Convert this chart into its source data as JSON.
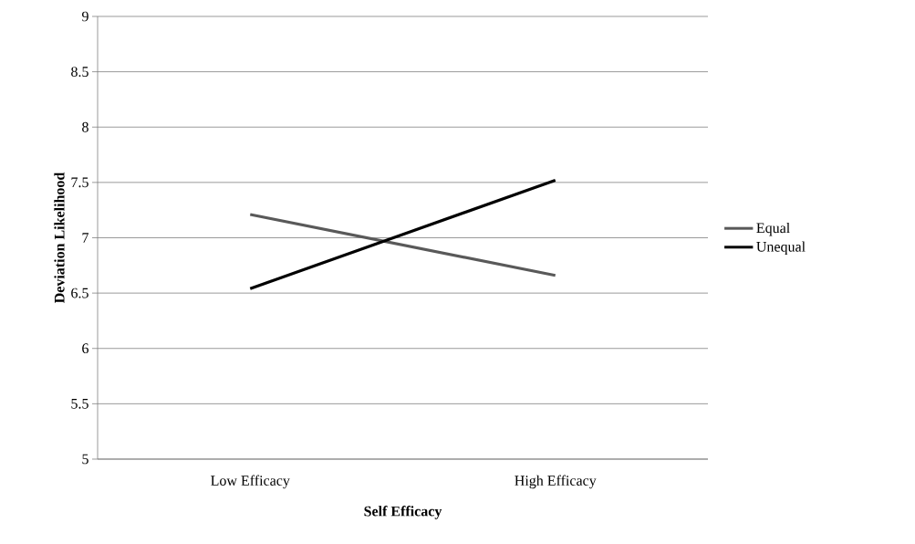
{
  "chart_data": {
    "type": "line",
    "xlabel": "Self Efficacy",
    "ylabel": "Deviation Likelihood",
    "categories": [
      "Low Efficacy",
      "High Efficacy"
    ],
    "series": [
      {
        "name": "Equal",
        "color": "#595959",
        "values": [
          7.21,
          6.66
        ]
      },
      {
        "name": "Unequal",
        "color": "#000000",
        "values": [
          6.54,
          7.52
        ]
      }
    ],
    "ylim": [
      5,
      9
    ],
    "yticks": [
      5,
      5.5,
      6,
      6.5,
      7,
      7.5,
      8,
      8.5,
      9
    ],
    "grid": "y",
    "legend": "right",
    "marker": "none",
    "line_style": "solid"
  }
}
